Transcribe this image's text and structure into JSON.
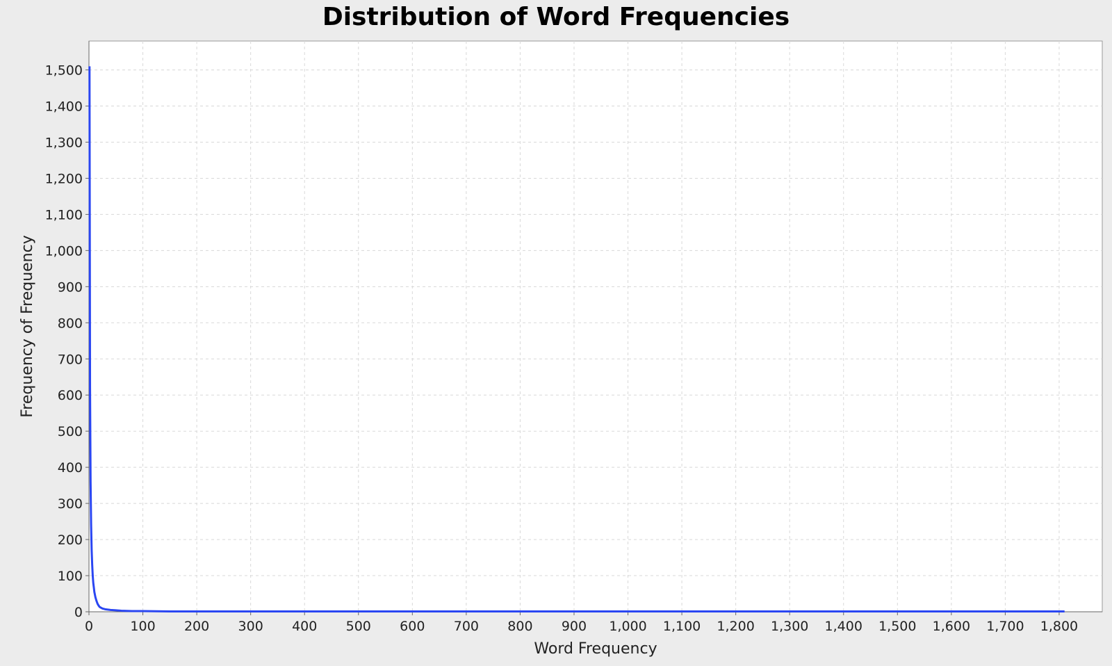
{
  "chart_data": {
    "type": "line",
    "title": "Distribution of Word Frequencies",
    "xlabel": "Word Frequency",
    "ylabel": "Frequency of Frequency",
    "xlim": [
      0,
      1880
    ],
    "ylim": [
      0,
      1580
    ],
    "x_ticks": [
      0,
      100,
      200,
      300,
      400,
      500,
      600,
      700,
      800,
      900,
      1000,
      1100,
      1200,
      1300,
      1400,
      1500,
      1600,
      1700,
      1800
    ],
    "x_tick_labels": [
      "0",
      "100",
      "200",
      "300",
      "400",
      "500",
      "600",
      "700",
      "800",
      "900",
      "1,000",
      "1,100",
      "1,200",
      "1,300",
      "1,400",
      "1,500",
      "1,600",
      "1,700",
      "1,800"
    ],
    "y_ticks": [
      0,
      100,
      200,
      300,
      400,
      500,
      600,
      700,
      800,
      900,
      1000,
      1100,
      1200,
      1300,
      1400,
      1500
    ],
    "y_tick_labels": [
      "0",
      "100",
      "200",
      "300",
      "400",
      "500",
      "600",
      "700",
      "800",
      "900",
      "1,000",
      "1,100",
      "1,200",
      "1,300",
      "1,400",
      "1,500"
    ],
    "grid": true,
    "colors": {
      "series": "#2a46f2",
      "grid": "#d8d8d8",
      "plot_background": "#ffffff",
      "page_background": "#ececec"
    },
    "series": [
      {
        "x": [
          1,
          2,
          3,
          4,
          5,
          6,
          7,
          8,
          9,
          10,
          12,
          14,
          16,
          18,
          20,
          25,
          30,
          40,
          50,
          60,
          80,
          100,
          150,
          200,
          300,
          500,
          800,
          1200,
          1600,
          1810
        ],
        "y": [
          1510,
          620,
          360,
          240,
          170,
          130,
          100,
          80,
          68,
          55,
          40,
          30,
          22,
          17,
          13,
          9,
          7,
          5,
          4,
          3,
          2,
          2,
          1,
          1,
          1,
          1,
          1,
          1,
          1,
          1
        ]
      }
    ]
  }
}
